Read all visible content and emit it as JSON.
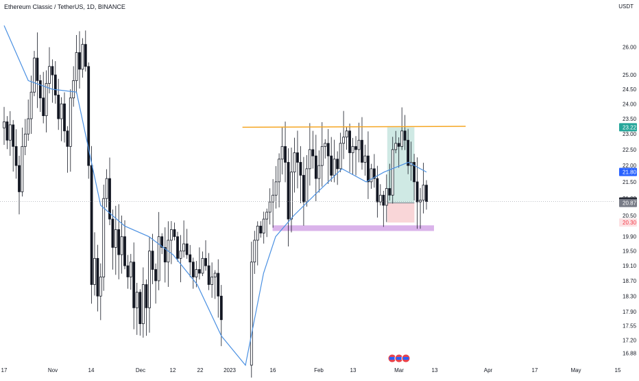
{
  "header": {
    "title": "Ethereum Classic / TetherUS, 1D, BINANCE",
    "currency": "USDT"
  },
  "colors": {
    "up": "#131722",
    "down": "#131722",
    "ma": "#4a90e2",
    "resistance": "#f5a623",
    "support_zone": "#d4a6e6",
    "profit_zone": "#cfe9e4",
    "loss_zone": "#f9d6d8",
    "last_price_bg": "#131722",
    "tag_green": "#26a69a",
    "tag_blue": "#2962ff",
    "tag_grey": "#787b86",
    "tag_red": "#f23645"
  },
  "chart_data": {
    "type": "candlestick",
    "title": "Ethereum Classic / TetherUS, 1D, BINANCE",
    "y_scale": "log",
    "ylim": [
      16.6,
      27.2
    ],
    "y_ticks": [
      "26.00",
      "25.00",
      "24.50",
      "24.00",
      "23.50",
      "23.00",
      "22.50",
      "22.00",
      "21.50",
      "21.00",
      "20.50",
      "19.90",
      "19.50",
      "19.10",
      "18.70",
      "18.30",
      "17.90",
      "17.55",
      "17.20",
      "16.88"
    ],
    "x_ticks": [
      "17",
      "Nov",
      "14",
      "Dec",
      "12",
      "22",
      "2023",
      "16",
      "Feb",
      "13",
      "Mar",
      "13",
      "Apr",
      "17",
      "May",
      "15"
    ],
    "price_tags": [
      {
        "label": "23.22",
        "value": 23.22,
        "kind": "target"
      },
      {
        "label": "21.80",
        "value": 21.8,
        "kind": "ma"
      },
      {
        "label": "20.91",
        "value": 20.91,
        "kind": "last"
      },
      {
        "label": "20.87",
        "value": 20.87,
        "kind": "entry"
      },
      {
        "label": "20.30",
        "value": 20.3,
        "kind": "stop"
      }
    ],
    "resistance_line": {
      "start": 23.22,
      "end": 23.25
    },
    "support_zone": {
      "low": 20.06,
      "high": 20.22
    },
    "position": {
      "target": 23.22,
      "entry": 20.87,
      "stop": 20.3
    },
    "last_price": 20.91,
    "series": [
      {
        "type": "candles",
        "segments": [
          {
            "start_day": 0,
            "end_day": 42,
            "start_price": 23.2,
            "prices": [
              23.4,
              22.8,
              23.3,
              22.6,
              22.0,
              21.2,
              22.6,
              23.0,
              23.5,
              24.4,
              25.6,
              24.8,
              24.2,
              23.6,
              24.7,
              25.3,
              25.0,
              24.3,
              23.5,
              24.0,
              23.1,
              22.6,
              24.2,
              24.8,
              25.8,
              25.2,
              26.1,
              25.3,
              22.0,
              18.6,
              19.3,
              18.3,
              18.8,
              21.0,
              21.6,
              20.4,
              19.6,
              20.1,
              19.4,
              19.9,
              19.1,
              18.8,
              19.2
            ]
          },
          {
            "start_day": 43,
            "end_day": 72,
            "start_price": 19.2,
            "prices": [
              18.0,
              18.4,
              17.6,
              18.6,
              18.0,
              19.5,
              19.0,
              18.7,
              19.9,
              19.6,
              19.2,
              19.8,
              20.1,
              19.9,
              19.3,
              19.5,
              19.7,
              19.4,
              19.2,
              18.8,
              19.0,
              18.9,
              19.3,
              19.1,
              18.6,
              18.8,
              18.9,
              18.3,
              17.7
            ]
          },
          {
            "start_day": 82,
            "end_day": 140,
            "start_price": 16.6,
            "prices": [
              19.2,
              19.8,
              20.2,
              20.0,
              20.4,
              20.6,
              20.9,
              21.1,
              21.5,
              22.2,
              22.6,
              22.1,
              20.4,
              21.8,
              22.4,
              22.1,
              21.7,
              20.9,
              21.9,
              22.5,
              22.3,
              21.6,
              22.0,
              22.6,
              22.7,
              22.3,
              21.7,
              22.2,
              21.9,
              22.7,
              22.9,
              23.1,
              22.4,
              22.6,
              22.5,
              22.8,
              22.1,
              22.3,
              21.5,
              21.9,
              21.6,
              20.9,
              21.1,
              20.8,
              21.3,
              21.1,
              22.5,
              22.7,
              22.6,
              23.1,
              22.8,
              22.0,
              22.1,
              21.5,
              20.9,
              20.95,
              21.4,
              20.91
            ]
          }
        ]
      },
      {
        "type": "line",
        "role": "moving-average",
        "points": [
          [
            0,
            26.8
          ],
          [
            8,
            24.8
          ],
          [
            16,
            24.5
          ],
          [
            24,
            24.4
          ],
          [
            32,
            20.8
          ],
          [
            40,
            20.2
          ],
          [
            48,
            19.9
          ],
          [
            56,
            19.4
          ],
          [
            64,
            18.6
          ],
          [
            72,
            17.3
          ],
          [
            80,
            16.6
          ],
          [
            86,
            18.9
          ],
          [
            90,
            19.9
          ],
          [
            96,
            20.5
          ],
          [
            104,
            21.2
          ],
          [
            112,
            21.9
          ],
          [
            120,
            21.5
          ],
          [
            126,
            21.8
          ],
          [
            134,
            22.1
          ],
          [
            140,
            21.8
          ]
        ]
      }
    ]
  }
}
